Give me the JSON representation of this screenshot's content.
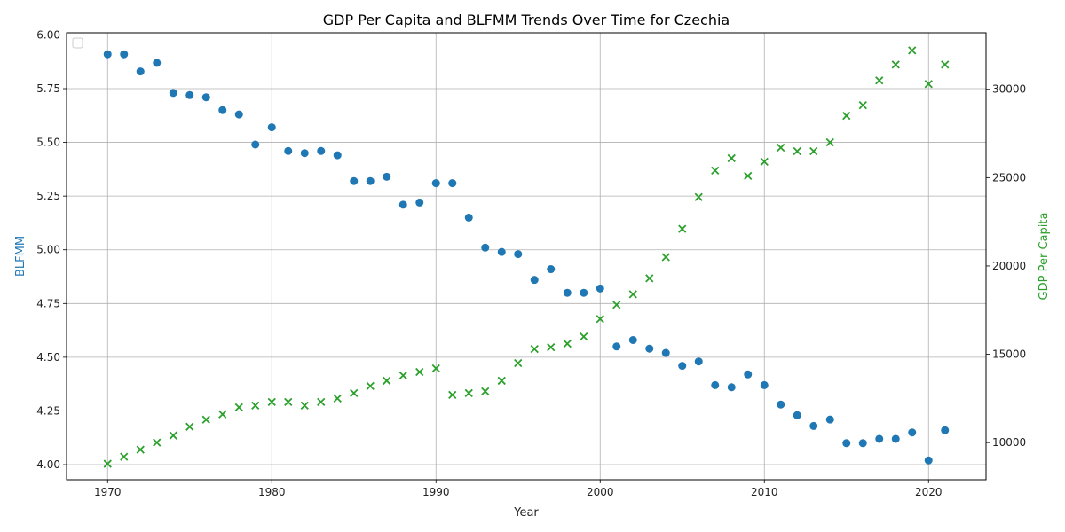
{
  "chart_data": {
    "type": "scatter",
    "title": "GDP Per Capita and BLFMM Trends Over Time for Czechia",
    "xlabel": "Year",
    "ylabel_left": "BLFMM",
    "ylabel_right": "GDP Per Capita",
    "xlim": [
      1967.5,
      2023.5
    ],
    "ylim_left": [
      3.93,
      6.01
    ],
    "ylim_right": [
      7900,
      33200
    ],
    "x_ticks": [
      1970,
      1980,
      1990,
      2000,
      2010,
      2020
    ],
    "y_left_ticks": [
      "4.00",
      "4.25",
      "4.50",
      "4.75",
      "5.00",
      "5.25",
      "5.50",
      "5.75",
      "6.00"
    ],
    "y_right_ticks": [
      "10000",
      "15000",
      "20000",
      "25000",
      "30000"
    ],
    "grid": true,
    "legend": "top-left (empty)",
    "colors": {
      "blfmm": "#1f77b4",
      "gdp": "#2ca02c"
    },
    "x": [
      1970,
      1971,
      1972,
      1973,
      1974,
      1975,
      1976,
      1977,
      1978,
      1979,
      1980,
      1981,
      1982,
      1983,
      1984,
      1985,
      1986,
      1987,
      1988,
      1989,
      1990,
      1991,
      1992,
      1993,
      1994,
      1995,
      1996,
      1997,
      1998,
      1999,
      2000,
      2001,
      2002,
      2003,
      2004,
      2005,
      2006,
      2007,
      2008,
      2009,
      2010,
      2011,
      2012,
      2013,
      2014,
      2015,
      2016,
      2017,
      2018,
      2019,
      2020,
      2021
    ],
    "series": [
      {
        "name": "BLFMM",
        "axis": "left",
        "marker": "circle",
        "values": [
          5.91,
          5.91,
          5.83,
          5.87,
          5.73,
          5.72,
          5.71,
          5.65,
          5.63,
          5.49,
          5.57,
          5.46,
          5.45,
          5.46,
          5.44,
          5.32,
          5.32,
          5.34,
          5.21,
          5.22,
          5.31,
          5.31,
          5.15,
          5.01,
          4.99,
          4.98,
          4.86,
          4.91,
          4.8,
          4.8,
          4.82,
          4.55,
          4.58,
          4.54,
          4.52,
          4.46,
          4.48,
          4.37,
          4.36,
          4.42,
          4.37,
          4.28,
          4.23,
          4.18,
          4.21,
          4.1,
          4.1,
          4.12,
          4.12,
          4.15,
          4.02,
          4.16
        ]
      },
      {
        "name": "GDP Per Capita",
        "axis": "right",
        "marker": "x",
        "values": [
          8800,
          9200,
          9600,
          10000,
          10400,
          10900,
          11300,
          11600,
          12000,
          12100,
          12300,
          12300,
          12100,
          12300,
          12500,
          12800,
          13200,
          13500,
          13800,
          14000,
          14200,
          12700,
          12800,
          12900,
          13500,
          14500,
          15300,
          15400,
          15600,
          16000,
          17000,
          17800,
          18400,
          19300,
          20500,
          22100,
          23900,
          25400,
          26100,
          25100,
          25900,
          26700,
          26500,
          26500,
          27000,
          28500,
          29100,
          30500,
          31400,
          32200,
          30300,
          31400
        ]
      }
    ]
  }
}
